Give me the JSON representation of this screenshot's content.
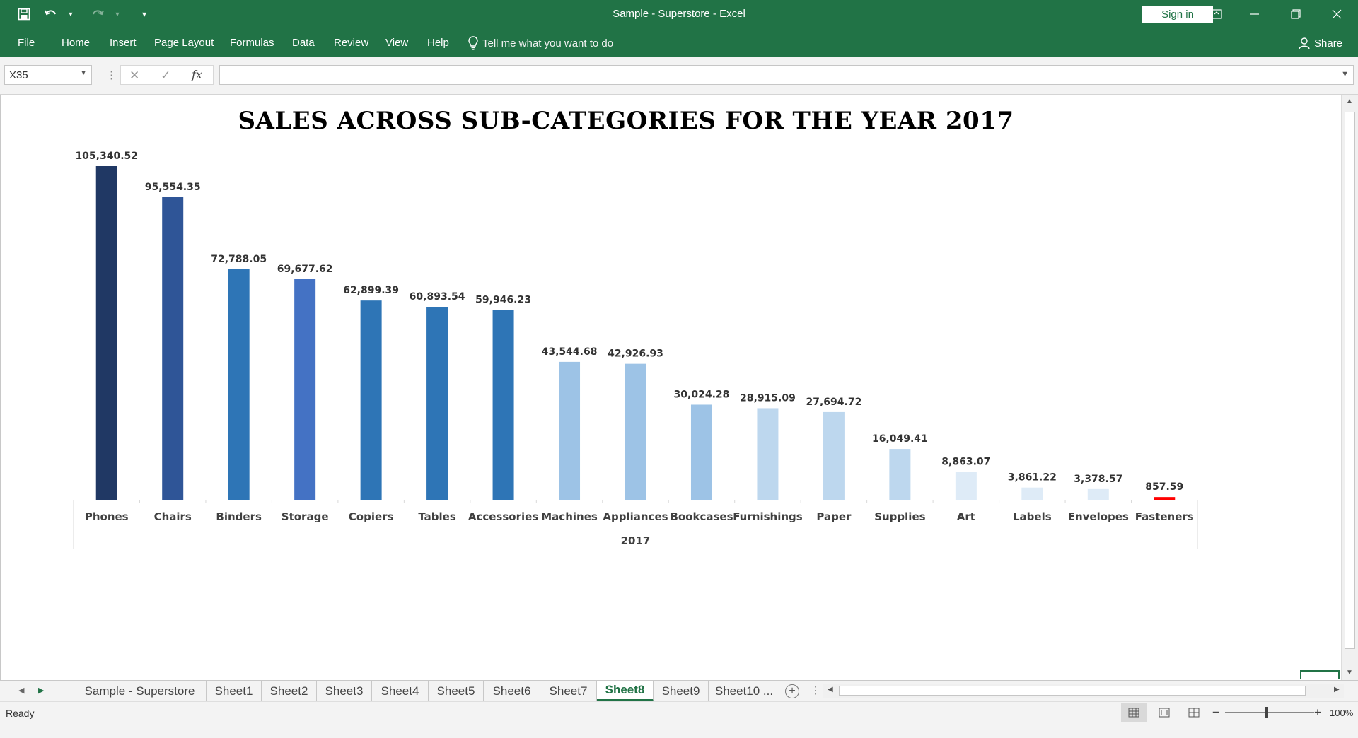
{
  "window": {
    "title": "Sample - Superstore  -  Excel",
    "sign_in": "Sign in"
  },
  "ribbon": {
    "tabs": [
      "File",
      "Home",
      "Insert",
      "Page Layout",
      "Formulas",
      "Data",
      "Review",
      "View",
      "Help"
    ],
    "tell_me": "Tell me what you want to do",
    "share": "Share"
  },
  "formula_bar": {
    "name_box": "X35",
    "fx": "fx",
    "value": ""
  },
  "chart_data": {
    "type": "bar",
    "title": "SALES ACROSS SUB-CATEGORIES FOR THE YEAR 2017",
    "group_label": "2017",
    "categories": [
      "Phones",
      "Chairs",
      "Binders",
      "Storage",
      "Copiers",
      "Tables",
      "Accessories",
      "Machines",
      "Appliances",
      "Bookcases",
      "Furnishings",
      "Paper",
      "Supplies",
      "Art",
      "Labels",
      "Envelopes",
      "Fasteners"
    ],
    "values": [
      105340.52,
      95554.35,
      72788.05,
      69677.62,
      62899.39,
      60893.54,
      59946.23,
      43544.68,
      42926.93,
      30024.28,
      28915.09,
      27694.72,
      16049.41,
      8863.07,
      3861.22,
      3378.57,
      857.59
    ],
    "data_labels": [
      "105,340.52",
      "95,554.35",
      "72,788.05",
      "69,677.62",
      "62,899.39",
      "60,893.54",
      "59,946.23",
      "43,544.68",
      "42,926.93",
      "30,024.28",
      "28,915.09",
      "27,694.72",
      "16,049.41",
      "8,863.07",
      "3,861.22",
      "3,378.57",
      "857.59"
    ],
    "colors": [
      "#203864",
      "#2f5597",
      "#2e75b6",
      "#4472c4",
      "#2e75b6",
      "#2e75b6",
      "#2e75b6",
      "#9dc3e6",
      "#9dc3e6",
      "#9dc3e6",
      "#bdd7ee",
      "#bdd7ee",
      "#bdd7ee",
      "#deebf7",
      "#deebf7",
      "#deebf7",
      "#ff0000"
    ],
    "ylim": [
      0,
      105340.52
    ],
    "grid": false,
    "legend": "none"
  },
  "sheets": {
    "tabs": [
      "Sample - Superstore",
      "Sheet1",
      "Sheet2",
      "Sheet3",
      "Sheet4",
      "Sheet5",
      "Sheet6",
      "Sheet7",
      "Sheet8",
      "Sheet9",
      "Sheet10 ..."
    ],
    "active": "Sheet8"
  },
  "status": {
    "mode": "Ready",
    "zoom": "100%"
  }
}
